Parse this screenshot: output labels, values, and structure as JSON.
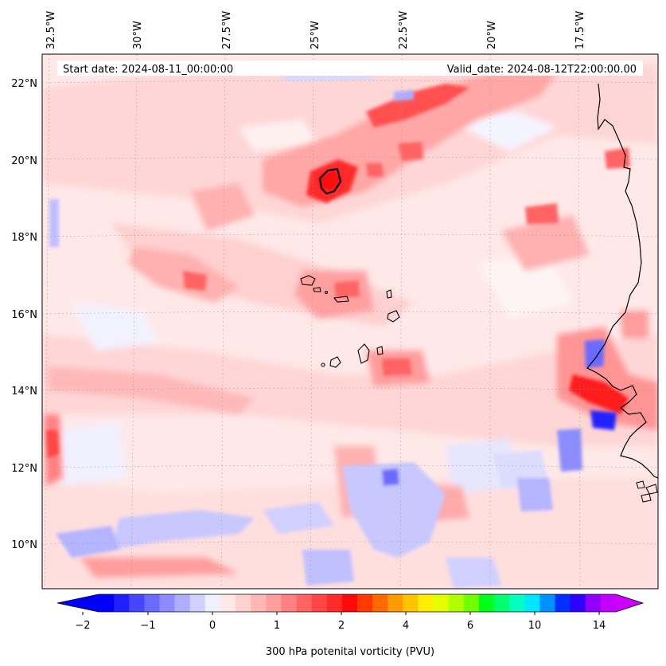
{
  "map": {
    "header": {
      "start_date": "Start date: 2024-08-11_00:00:00",
      "valid_date": "Valid_date: 2024-08-12T22:00:00.00"
    },
    "longitude_labels": [
      "32.5°W",
      "30°W",
      "27.5°W",
      "25°W",
      "22.5°W",
      "20°W",
      "17.5°W"
    ],
    "latitude_labels": [
      "22°N",
      "20°N",
      "18°N",
      "16°N",
      "14°N",
      "12°N",
      "10°N"
    ],
    "features": {
      "coastline": "West Africa coastline (Senegal / Gambia / Guinea-Bissau)",
      "islands": "Cape Verde Islands"
    }
  },
  "colorbar": {
    "label": "300 hPa potenital vorticity (PVU)",
    "tick_labels": [
      "−2",
      "−1",
      "0",
      "1",
      "2",
      "4",
      "6",
      "10",
      "14"
    ],
    "colors": [
      "#0000ff",
      "#2020ff",
      "#4646ff",
      "#6a6aff",
      "#8c8cff",
      "#aeaeff",
      "#d0d0ff",
      "#f0f0ff",
      "#ffe8e8",
      "#ffd0d0",
      "#ffb6b6",
      "#ff9c9c",
      "#ff8080",
      "#ff6464",
      "#ff4646",
      "#ff2a2a",
      "#ff0a0a",
      "#ff3a00",
      "#ff6a00",
      "#ff9a00",
      "#ffc400",
      "#ffee00",
      "#e6ff00",
      "#b0ff00",
      "#70ff00",
      "#00ff1a",
      "#00ff70",
      "#00ffc0",
      "#00e6ff",
      "#0090ff",
      "#0030ff",
      "#3000ff",
      "#9000ff",
      "#c400ff"
    ],
    "under_color": "#0000ff",
    "over_color": "#cc00ff"
  }
}
